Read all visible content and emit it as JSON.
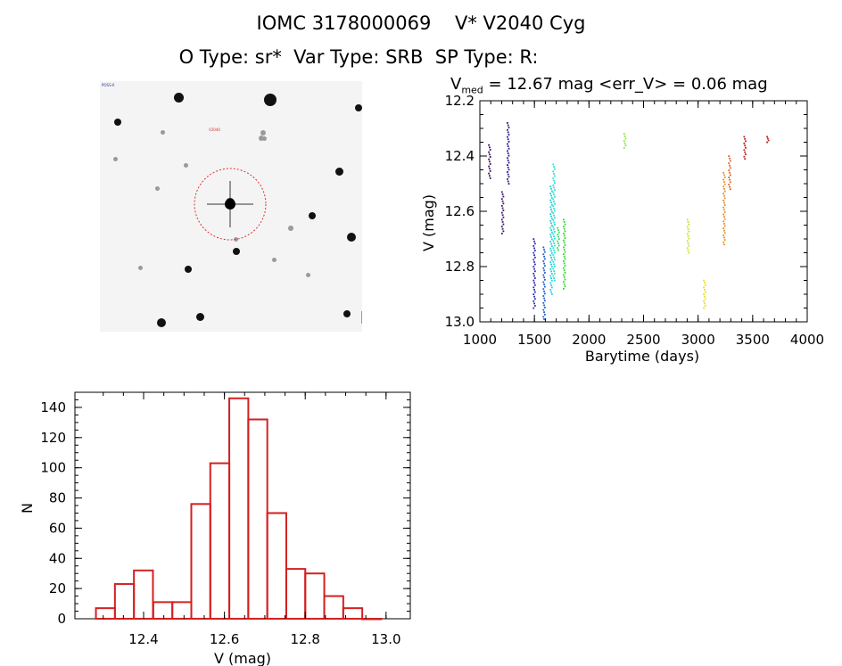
{
  "header": {
    "title_line1": "IOMC 3178000069    V* V2040 Cyg",
    "title_line2": "O Type: sr*  Var Type: SRB  SP Type: R:",
    "stats_prefix": "V",
    "stats_sub": "med",
    "stats_rest": " = 12.67 mag <err_V> = 0.06 mag"
  },
  "colors": {
    "histogram_edge": "#d42020",
    "target_circle": "#e03030"
  },
  "chart_data": [
    {
      "type": "scatter",
      "xlabel": "Barytime (days)",
      "ylabel": "V (mag)",
      "xlim": [
        1000,
        4000
      ],
      "ylim": [
        13.0,
        12.2
      ],
      "y_inverted": true,
      "xticks": [
        "1000",
        "1500",
        "2000",
        "2500",
        "3000",
        "3500",
        "4000"
      ],
      "yticks": [
        "12.2",
        "12.4",
        "12.6",
        "12.8",
        "13.0"
      ],
      "groups": [
        {
          "x": 1090,
          "ymin": 12.36,
          "ymax": 12.48,
          "color": "#3a1060"
        },
        {
          "x": 1210,
          "ymin": 12.53,
          "ymax": 12.68,
          "color": "#3a1a6a"
        },
        {
          "x": 1260,
          "ymin": 12.28,
          "ymax": 12.5,
          "color": "#2a1880"
        },
        {
          "x": 1500,
          "ymin": 12.7,
          "ymax": 12.95,
          "color": "#2a2ab0"
        },
        {
          "x": 1590,
          "ymin": 12.73,
          "ymax": 12.99,
          "color": "#2060d0"
        },
        {
          "x": 1655,
          "ymin": 12.51,
          "ymax": 12.9,
          "color": "#20d0e0"
        },
        {
          "x": 1680,
          "ymin": 12.43,
          "ymax": 12.85,
          "color": "#30e0d0"
        },
        {
          "x": 1720,
          "ymin": 12.66,
          "ymax": 12.74,
          "color": "#30e060"
        },
        {
          "x": 1775,
          "ymin": 12.63,
          "ymax": 12.88,
          "color": "#30d830"
        },
        {
          "x": 2330,
          "ymin": 12.32,
          "ymax": 12.37,
          "color": "#90e040"
        },
        {
          "x": 2910,
          "ymin": 12.63,
          "ymax": 12.75,
          "color": "#c8e030"
        },
        {
          "x": 3060,
          "ymin": 12.85,
          "ymax": 12.95,
          "color": "#e8e020"
        },
        {
          "x": 3240,
          "ymin": 12.46,
          "ymax": 12.72,
          "color": "#e89020"
        },
        {
          "x": 3290,
          "ymin": 12.4,
          "ymax": 12.52,
          "color": "#e06020"
        },
        {
          "x": 3430,
          "ymin": 12.33,
          "ymax": 12.41,
          "color": "#c02020"
        },
        {
          "x": 3640,
          "ymin": 12.33,
          "ymax": 12.35,
          "color": "#c02020"
        }
      ]
    },
    {
      "type": "bar",
      "subtype": "histogram",
      "xlabel": "V (mag)",
      "ylabel": "N",
      "xlim": [
        12.23,
        13.06
      ],
      "ylim": [
        0,
        150
      ],
      "xticks": [
        "12.4",
        "12.6",
        "12.8",
        "13.0"
      ],
      "yticks": [
        "0",
        "20",
        "40",
        "60",
        "80",
        "100",
        "120",
        "140"
      ],
      "bin_width": 0.0471,
      "bin_starts": [
        12.282,
        12.329,
        12.376,
        12.424,
        12.471,
        12.518,
        12.565,
        12.612,
        12.659,
        12.706,
        12.753,
        12.8,
        12.847,
        12.894,
        12.941
      ],
      "values": [
        7,
        23,
        32,
        11,
        11,
        76,
        103,
        146,
        132,
        70,
        33,
        30,
        15,
        7,
        0
      ]
    }
  ]
}
